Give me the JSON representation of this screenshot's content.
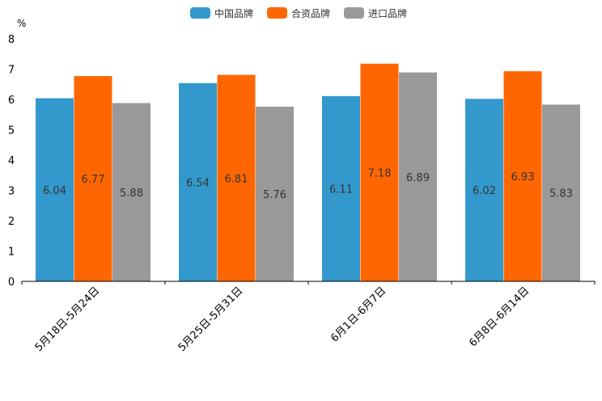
{
  "chart_data": {
    "type": "bar",
    "ylabel": "%",
    "ylim": [
      0,
      8
    ],
    "yticks": [
      0,
      1,
      2,
      3,
      4,
      5,
      6,
      7,
      8
    ],
    "grid": false,
    "legend_position": "top-center",
    "categories": [
      "5月18日-5月24日",
      "5月25日-5月31日",
      "6月1日-6月7日",
      "6月8日-6月14日"
    ],
    "series": [
      {
        "name": "中国品牌",
        "color": "#3399cc",
        "values": [
          6.04,
          6.54,
          6.11,
          6.02
        ]
      },
      {
        "name": "合资品牌",
        "color": "#ff6600",
        "values": [
          6.77,
          6.81,
          7.18,
          6.93
        ]
      },
      {
        "name": "进口品牌",
        "color": "#999999",
        "values": [
          5.88,
          5.76,
          6.89,
          5.83
        ]
      }
    ]
  }
}
